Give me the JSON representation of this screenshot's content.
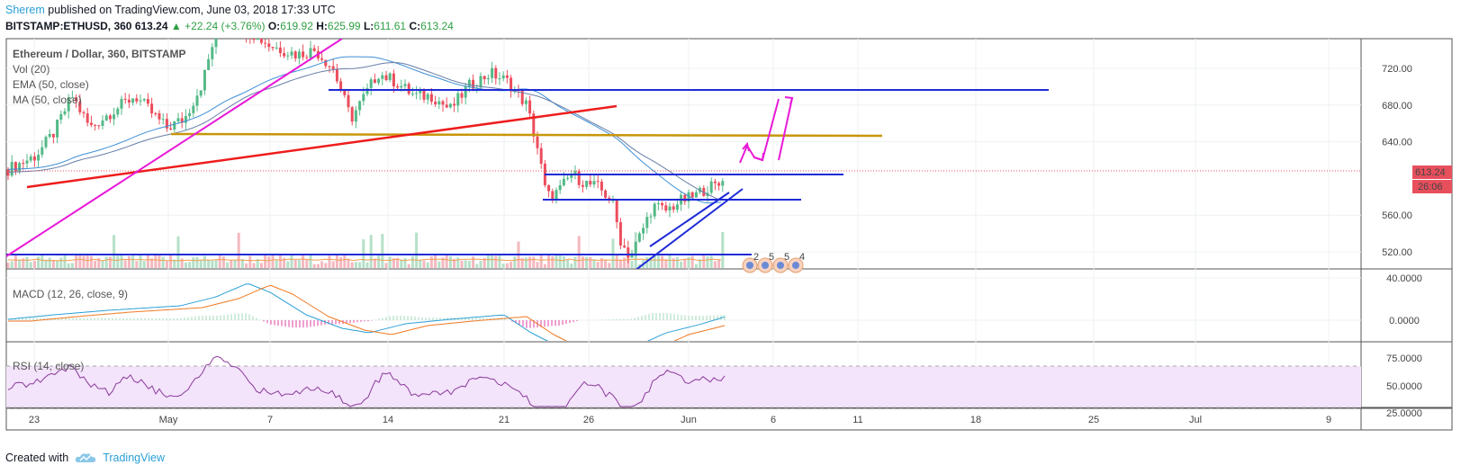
{
  "header": {
    "author": "Sherem",
    "published": "published on TradingView.com, June 03, 2018 17:33 UTC",
    "symbol": "BITSTAMP:ETHUSD, 360",
    "price": "613.24",
    "change": "+22.24 (+3.76%)",
    "o_label": "O:",
    "o_value": "619.92",
    "h_label": "H:",
    "h_value": "625.99",
    "l_label": "L:",
    "l_value": "611.61",
    "c_label": "C:",
    "c_value": "613.24"
  },
  "indicators": {
    "title": "Ethereum / Dollar, 360, BITSTAMP",
    "vol": "Vol (20)",
    "ema": "EMA (50, close)",
    "ma": "MA (50, close)",
    "macd": "MACD (12, 26, close, 9)",
    "rsi": "RSI (14, close)"
  },
  "footer": {
    "created": "Created with",
    "brand": "TradingView"
  },
  "colors": {
    "up": "#53b987",
    "down": "#eb4d5c",
    "accent": "#2a9fd6",
    "blue_line": "#1f2bd6",
    "magenta": "#e81ad8",
    "red_trend": "#ee1c1c",
    "gold": "#c8960a",
    "price_tag": "#e84f5c"
  },
  "chart_data": {
    "type": "candlestick",
    "title": "Ethereum / Dollar, 360, BITSTAMP",
    "x_tick_labels": [
      "23",
      "May",
      "7",
      "14",
      "21",
      "26",
      "Jun",
      "6",
      "11",
      "18",
      "25",
      "Jul",
      "9"
    ],
    "price_axis": {
      "ticks": [
        "720.00",
        "680.00",
        "640.00",
        "560.00",
        "520.00"
      ],
      "ylim": [
        500,
        750
      ],
      "last_price_tag": "613.24",
      "countdown_tag": "26:06"
    },
    "macd_axis": {
      "ticks": [
        "40.0000",
        "0.0000"
      ]
    },
    "rsi_axis": {
      "ticks": [
        "75.0000",
        "50.0000",
        "25.0000"
      ],
      "band": [
        30,
        70
      ]
    },
    "event_marks": [
      "2",
      "5",
      "5",
      "4"
    ],
    "key_levels": [
      697,
      650,
      608,
      581,
      523
    ]
  }
}
